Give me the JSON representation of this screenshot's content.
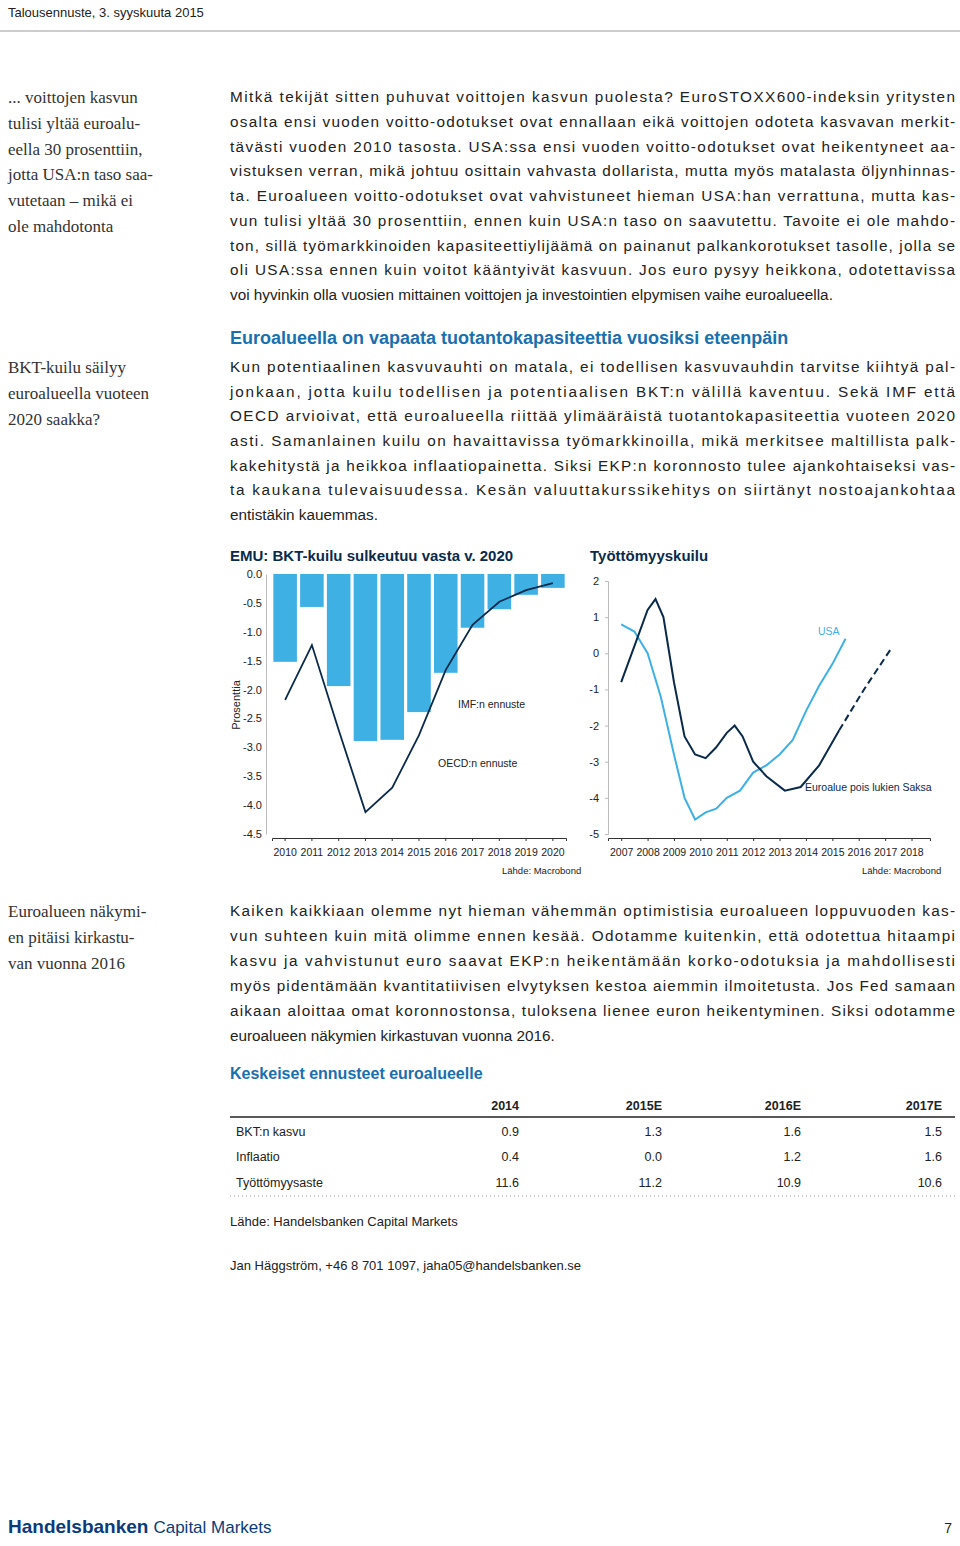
{
  "header": "Talousennuste, 3. syyskuuta 2015",
  "sidebar_notes": [
    [
      "... voittojen kasvun",
      "tulisi yltää euroalu-",
      "eella 30 prosenttiin,",
      "jotta USA:n taso saa-",
      "vutetaan – mikä ei",
      "ole mahdotonta"
    ],
    [
      "BKT-kuilu säilyy",
      "euroalueella vuoteen",
      "2020 saakka?"
    ],
    [
      "Euroalueen näkymi-",
      "en pitäisi kirkastu-",
      "van vuonna 2016"
    ]
  ],
  "paragraphs": [
    [
      "Mitkä tekijät sitten puhuvat voittojen kasvun puolesta? EuroSTOXX600-indeksin yritysten",
      "osalta ensi vuoden voitto-odotukset ovat ennallaan eikä voittojen odoteta kasvavan merkit-",
      "tävästi vuoden 2010 tasosta. USA:ssa ensi vuoden voitto-odotukset ovat heikentyneet aa-",
      "vistuksen verran, mikä johtuu osittain vahvasta dollarista, mutta myös matalasta öljynhinnas-",
      "ta. Euroalueen voitto-odotukset ovat vahvistuneet hieman USA:han verrattuna, mutta kas-",
      "vun tulisi yltää 30 prosenttiin, ennen kuin USA:n taso on saavutettu. Tavoite ei ole mahdo-",
      "ton, sillä työmarkkinoiden kapasiteettiylijäämä on painanut palkankorotukset tasolle, jolla se",
      "oli USA:ssa ennen kuin voitot kääntyivät kasvuun. Jos euro pysyy heikkona, odotettavissa",
      "voi hyvinkin olla vuosien mittainen voittojen ja investointien elpymisen vaihe euroalueella."
    ],
    [
      "Kun potentiaalinen kasvuvauhti on matala, ei todellisen kasvuvauhdin tarvitse kiihtyä pal-",
      "jonkaan, jotta kuilu todellisen ja potentiaalisen BKT:n välillä kaventuu. Sekä IMF että",
      "OECD arvioivat, että euroalueella riittää ylimääräistä tuotantokapasiteettia vuoteen 2020",
      "asti. Samanlainen kuilu on havaittavissa työmarkkinoilla, mikä merkitsee maltillista palk-",
      "kakehitystä ja heikkoa inflaatiopainetta. Siksi EKP:n koronnosto tulee ajankohtaiseksi vas-",
      "ta kaukana tulevaisuudessa. Kesän valuuttakurssikehitys on siirtänyt nostoajankohtaa",
      "entistäkin kauemmas."
    ],
    [
      "Kaiken kaikkiaan olemme nyt hieman vähemmän optimistisia euroalueen loppuvuoden kas-",
      "vun suhteen kuin mitä olimme ennen kesää. Odotamme kuitenkin, että odotettua hitaampi",
      "kasvu ja vahvistunut euro saavat EKP:n heikentämään korko-odotuksia ja mahdollisesti",
      "myös pidentämään kvantitatiivisen elvytyksen kestoa aiemmin ilmoitetusta. Jos Fed samaan",
      "aikaan aloittaa omat koronnostonsa, tuloksena lienee euron heikentyminen. Siksi odotamme",
      "euroalueen näkymien kirkastuvan vuonna 2016."
    ]
  ],
  "heading": "Euroalueella on vapaata tuotantokapasiteettia vuosiksi eteenpäin",
  "chart_data": [
    {
      "type": "bar",
      "title": "EMU: BKT-kuilu sulkeutuu vasta v. 2020",
      "y_label": "Prosenttia",
      "categories": [
        "2010",
        "2011",
        "2012",
        "2013",
        "2014",
        "2015",
        "2016",
        "2017",
        "2018",
        "2019",
        "2020"
      ],
      "series": [
        {
          "name": "IMF:n ennuste",
          "type": "bar",
          "color": "#3fb0e4",
          "values": [
            -1.52,
            -0.57,
            -1.94,
            -2.89,
            -2.87,
            -2.39,
            -1.71,
            -0.93,
            -0.61,
            -0.36,
            -0.24
          ]
        },
        {
          "name": "OECD:n ennuste",
          "type": "line",
          "color": "#0b2a4a",
          "values": [
            -2.18,
            -1.23,
            -2.7,
            -4.12,
            -3.7,
            -2.79,
            -1.66,
            -0.88,
            -0.48,
            -0.28,
            -0.16
          ]
        }
      ],
      "ylim": [
        -4.5,
        0
      ],
      "yticks": [
        {
          "value": 0,
          "label": "0.0"
        },
        -0.5,
        {
          "value": -1,
          "label": "-1.0"
        },
        -1.5,
        {
          "value": -2,
          "label": "-2.0"
        },
        -2.5,
        {
          "value": -3,
          "label": "-3.0"
        },
        -3.5,
        {
          "value": -4,
          "label": "-4.0"
        },
        -4.5
      ],
      "source": "Lähde: Macrobond"
    },
    {
      "type": "line",
      "title": "Työttömyyskuilu",
      "series": [
        {
          "name": "USA",
          "color": "#3fb0e4",
          "x": [
            2007.0,
            2007.5,
            2008.0,
            2008.5,
            2009.0,
            2009.4,
            2009.8,
            2010.2,
            2010.6,
            2011.0,
            2011.5,
            2012.0,
            2012.5,
            2013.0,
            2013.5,
            2014.0,
            2014.5,
            2015.0,
            2015.5
          ],
          "values": [
            0.8,
            0.6,
            0.0,
            -1.2,
            -2.8,
            -4.0,
            -4.6,
            -4.4,
            -4.3,
            -4.0,
            -3.8,
            -3.3,
            -3.1,
            -2.8,
            -2.4,
            -1.6,
            -0.9,
            -0.3,
            0.4
          ]
        },
        {
          "name": "Euroalue pois lukien Saksa",
          "color": "#0b2a4a",
          "x": [
            2007.0,
            2007.5,
            2008.0,
            2008.3,
            2008.6,
            2009.0,
            2009.4,
            2009.8,
            2010.2,
            2010.6,
            2011.0,
            2011.3,
            2011.6,
            2012.0,
            2012.5,
            2013.2,
            2013.8,
            2014.5,
            2015.26
          ],
          "values": [
            -0.8,
            0.2,
            1.2,
            1.5,
            1.0,
            -0.8,
            -2.3,
            -2.8,
            -2.9,
            -2.6,
            -2.2,
            -2.0,
            -2.3,
            -3.0,
            -3.4,
            -3.8,
            -3.7,
            -3.1,
            -2.13
          ]
        },
        {
          "color": "#0b2a4a",
          "line_style": "dashed",
          "x": [
            2015.26,
            2015.7,
            2016.2,
            2016.7,
            2017.2
          ],
          "values": [
            -2.13,
            -1.6,
            -1.0,
            -0.45,
            0.1
          ]
        }
      ],
      "xlim": [
        2006.5,
        2018.7
      ],
      "xticks": [
        2007,
        2008,
        2009,
        2010,
        2011,
        2012,
        2013,
        2014,
        2015,
        2016,
        2017,
        2018
      ],
      "ylim": [
        -5,
        2
      ],
      "yticks": [
        2,
        1,
        0,
        -1,
        -2,
        -3,
        -4,
        -5
      ],
      "source": "Lähde: Macrobond"
    }
  ],
  "table": {
    "title": "Keskeiset ennusteet euroalueelle",
    "columns": [
      "2014",
      "2015E",
      "2016E",
      "2017E"
    ],
    "rows": [
      {
        "label": "BKT:n kasvu",
        "values": [
          "0.9",
          "1.3",
          "1.6",
          "1.5"
        ]
      },
      {
        "label": "Inflaatio",
        "values": [
          "0.4",
          "0.0",
          "1.2",
          "1.6"
        ]
      },
      {
        "label": "Työttömyysaste",
        "values": [
          "11.6",
          "11.2",
          "10.9",
          "10.6"
        ]
      }
    ],
    "source": "Lähde: Handelsbanken Capital Markets"
  },
  "contact": "Jan Häggström, +46 8 701 1097, jaha05@handelsbanken.se",
  "footer": {
    "brand": "Handelsbanken",
    "brand_suffix": "Capital Markets",
    "page": "7"
  }
}
